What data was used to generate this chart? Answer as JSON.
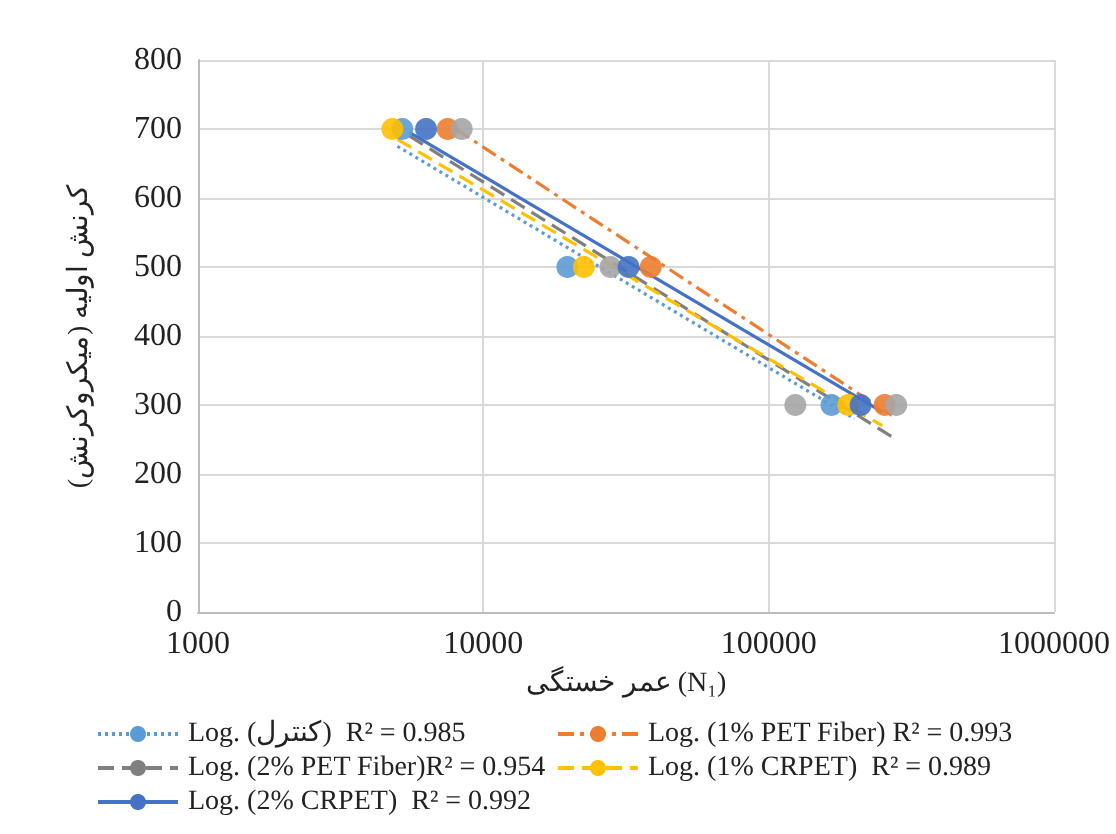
{
  "chart_data": {
    "type": "scatter",
    "xlabel": "عمر خستگی (N₁)",
    "ylabel": "کرنش اولیه (میکروکرنش)",
    "log": "x",
    "grid": true,
    "legend": "bottom",
    "marker": "circle",
    "xlim": [
      1000,
      1000000
    ],
    "xticks": [
      1000,
      10000,
      100000,
      1000000
    ],
    "ylim": [
      0,
      800
    ],
    "yticks": [
      0,
      100,
      200,
      300,
      400,
      500,
      600,
      700,
      800
    ],
    "series": [
      {
        "color": "#5b9bd5",
        "x": [
          5200,
          19700,
          166000
        ],
        "values": [
          700,
          500,
          300
        ]
      },
      {
        "color": "#ed7d31",
        "x": [
          7500,
          38600,
          255000
        ],
        "values": [
          700,
          500,
          300
        ]
      },
      {
        "color": "#a5a5a5",
        "x": [
          8400,
          27900,
          124000,
          280000
        ],
        "values": [
          700,
          500,
          300,
          300
        ]
      },
      {
        "color": "#ffc000",
        "x": [
          4800,
          22500,
          190000
        ],
        "values": [
          700,
          500,
          300
        ]
      },
      {
        "color": "#4472c4",
        "x": [
          6300,
          32300,
          210000
        ],
        "values": [
          700,
          500,
          300
        ]
      },
      {
        "type": "line",
        "name": "Log. (کنترل)  R² = 0.985",
        "color": "#5b9bd5",
        "line_style": "dotted",
        "marker": "none",
        "x": [
          5000,
          200000
        ],
        "values": [
          675,
          280
        ]
      },
      {
        "type": "line",
        "name": "Log. (1% PET Fiber) R² = 0.993",
        "color": "#ed7d31",
        "line_style": "dashdot",
        "marker": "none",
        "x": [
          8000,
          270000
        ],
        "values": [
          700,
          285
        ]
      },
      {
        "type": "line",
        "name": "Log. (2% PET Fiber)R² = 0.954",
        "color": "#7f7f7f",
        "line_style": "dashed",
        "marker": "none",
        "x": [
          5500,
          280000
        ],
        "values": [
          690,
          250
        ]
      },
      {
        "type": "line",
        "name": "Log. (1% CRPET)  R² = 0.989",
        "color": "#ffc000",
        "line_style": "dashed",
        "marker": "none",
        "x": [
          5000,
          250000
        ],
        "values": [
          685,
          270
        ]
      },
      {
        "type": "line",
        "name": "Log. (2% CRPET)  R² = 0.992",
        "color": "#4472c4",
        "line_style": "solid",
        "marker": "none",
        "x": [
          5500,
          250000
        ],
        "values": [
          695,
          290
        ]
      }
    ]
  }
}
